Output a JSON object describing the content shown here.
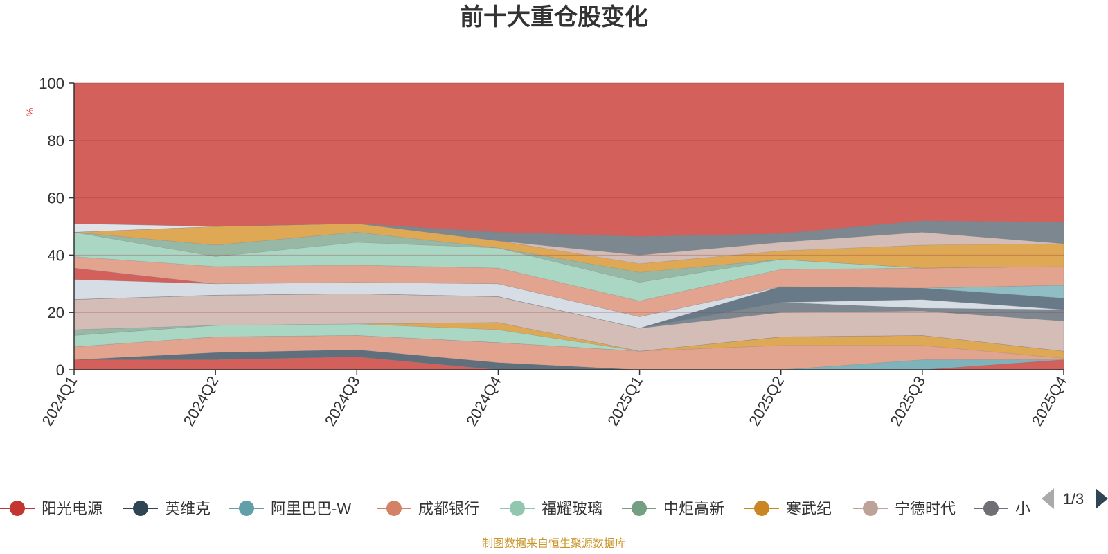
{
  "chart_data": {
    "type": "area",
    "title": "前十大重仓股变化",
    "ylabel": "%",
    "ylim": [
      0,
      100
    ],
    "yticks": [
      0,
      20,
      40,
      60,
      80,
      100
    ],
    "categories": [
      "2024Q1",
      "2024Q2",
      "2024Q3",
      "2024Q4",
      "2025Q1",
      "2025Q2",
      "2025Q3",
      "2025Q4"
    ],
    "grid": true,
    "legend_position": "bottom",
    "legend_page": "1/3",
    "bands": [
      {
        "color": "#d4605c",
        "lower": [
          3.5,
          3.5,
          4.5,
          0,
          0,
          0,
          0,
          3.5
        ],
        "upper": [
          3.5,
          3.5,
          4.5,
          0,
          0,
          0,
          0,
          3.5
        ]
      },
      {
        "color": "#d4605c",
        "lower": [
          0,
          0,
          0,
          0,
          0,
          0,
          0,
          0
        ],
        "upper": [
          3.5,
          3.5,
          4.5,
          0,
          0,
          0,
          0,
          3.5
        ]
      },
      {
        "color": "#5f6f7c",
        "lower": [
          3.5,
          3.5,
          4.5,
          0,
          0,
          0,
          0,
          3.5
        ],
        "upper": [
          3.5,
          6,
          7,
          2.5,
          0,
          0,
          0,
          3.5
        ]
      },
      {
        "color": "#7fb3bb",
        "lower": [
          0,
          0,
          0,
          0,
          0,
          0,
          0,
          3.5
        ],
        "upper": [
          0,
          0,
          0,
          0,
          0,
          0,
          3.5,
          3.5
        ]
      },
      {
        "color": "#e2a48e",
        "lower": [
          3.5,
          6,
          7,
          2.5,
          0,
          0,
          3.5,
          3.5
        ],
        "upper": [
          8,
          11.5,
          12,
          9.5,
          6.5,
          8.5,
          8.5,
          4
        ]
      },
      {
        "color": "#dfa855",
        "lower": [
          8,
          11.5,
          12,
          9.5,
          6.5,
          8.5,
          8.5,
          4
        ],
        "upper": [
          8,
          11.5,
          12,
          9.5,
          6.5,
          11.5,
          12,
          6.5
        ]
      },
      {
        "color": "#aad6c4",
        "lower": [
          8,
          11.5,
          12,
          9.5,
          6.5,
          11.5,
          12,
          6.5
        ],
        "upper": [
          12,
          15.5,
          16,
          14,
          6.5,
          11.5,
          12,
          6.5
        ]
      },
      {
        "color": "#dfa855",
        "lower": [
          12,
          15.5,
          16,
          14,
          6.5,
          11.5,
          12,
          6.5
        ],
        "upper": [
          12,
          15.5,
          16,
          16.5,
          6.5,
          11.5,
          12,
          6.5
        ]
      },
      {
        "color": "#98b8a6",
        "lower": [
          12,
          15.5,
          16,
          16.5,
          6.5,
          11.5,
          12,
          6.5
        ],
        "upper": [
          14,
          15.5,
          16,
          16.5,
          6.5,
          11.5,
          12,
          6.5
        ]
      },
      {
        "color": "#d3bdb6",
        "lower": [
          14,
          15.5,
          16,
          16.5,
          6.5,
          11.5,
          12,
          6.5
        ],
        "upper": [
          24.5,
          26,
          26.5,
          25.5,
          14.5,
          20,
          20.5,
          17
        ]
      },
      {
        "color": "#7c8790",
        "lower": [
          24.5,
          26,
          26.5,
          25.5,
          14.5,
          20,
          20.5,
          17
        ],
        "upper": [
          24.5,
          26,
          26.5,
          25.5,
          14.5,
          23.5,
          21.5,
          21
        ]
      },
      {
        "color": "#d7dde4",
        "lower": [
          24.5,
          26,
          26.5,
          25.5,
          14.5,
          23.5,
          21.5,
          21
        ],
        "upper": [
          31.5,
          30,
          30.5,
          30,
          18.5,
          29,
          24.5,
          21
        ]
      },
      {
        "color": "#687a87",
        "lower": [
          24.5,
          26,
          26.5,
          25.5,
          14.5,
          23.5,
          24.5,
          21
        ],
        "upper": [
          24.5,
          26,
          26.5,
          25.5,
          14.5,
          29,
          28.5,
          25
        ]
      },
      {
        "color": "#8fbec5",
        "lower": [
          24.5,
          26,
          26.5,
          25.5,
          14.5,
          29,
          28.5,
          25
        ],
        "upper": [
          24.5,
          26,
          26.5,
          25.5,
          14.5,
          29,
          28.5,
          29.5
        ]
      },
      {
        "color": "#d4605c",
        "lower": [
          31.5,
          30,
          30.5,
          30,
          18.5,
          29,
          28.5,
          29.5
        ],
        "upper": [
          35.5,
          30,
          30.5,
          30,
          18.5,
          29,
          28.5,
          29.5
        ]
      },
      {
        "color": "#e2a48e",
        "lower": [
          35.5,
          30,
          30.5,
          30,
          18.5,
          29,
          28.5,
          29.5
        ],
        "upper": [
          39.5,
          36,
          36.5,
          35.5,
          24,
          35,
          35.5,
          36
        ]
      },
      {
        "color": "#aad6c4",
        "lower": [
          39.5,
          36,
          36.5,
          35.5,
          24,
          35,
          35.5,
          36
        ],
        "upper": [
          48,
          39.5,
          44.5,
          42.5,
          30.5,
          38.5,
          35.5,
          36
        ]
      },
      {
        "color": "#98b8a6",
        "lower": [
          48,
          39.5,
          44.5,
          42.5,
          30.5,
          38.5,
          35.5,
          36
        ],
        "upper": [
          48,
          43.5,
          48,
          42.5,
          34,
          38.5,
          35.5,
          36
        ]
      },
      {
        "color": "#dfa855",
        "lower": [
          48,
          43.5,
          48,
          42.5,
          34,
          38.5,
          35.5,
          36
        ],
        "upper": [
          48,
          50,
          51,
          45,
          37,
          41.5,
          43.5,
          44
        ]
      },
      {
        "color": "#d3bdb6",
        "lower": [
          48,
          50,
          51,
          45,
          37,
          41.5,
          43.5,
          44
        ],
        "upper": [
          48,
          50,
          51,
          45,
          40,
          44.5,
          48,
          44
        ]
      },
      {
        "color": "#7c8790",
        "lower": [
          48,
          50,
          51,
          45,
          40,
          44.5,
          48,
          44
        ],
        "upper": [
          48,
          50,
          51,
          48,
          46.5,
          47.5,
          52,
          51.5
        ]
      },
      {
        "color": "#e0e4ea",
        "lower": [
          48,
          50,
          51,
          48,
          46.5,
          47.5,
          52,
          51.5
        ],
        "upper": [
          51,
          50,
          51,
          48,
          46.5,
          47.5,
          52,
          51.5
        ]
      },
      {
        "color": "#d4605c",
        "lower": [
          51,
          50,
          51,
          48,
          46.5,
          47.5,
          52,
          51.5
        ],
        "upper": [
          100,
          100,
          100,
          100,
          100,
          100,
          100,
          100
        ]
      }
    ],
    "series": [
      {
        "name": "阳光电源",
        "color": "#c23531"
      },
      {
        "name": "英维克",
        "color": "#2f4554"
      },
      {
        "name": "阿里巴巴-W",
        "color": "#61a0a8"
      },
      {
        "name": "成都银行",
        "color": "#d48265"
      },
      {
        "name": "福耀玻璃",
        "color": "#91c7ae"
      },
      {
        "name": "中炬高新",
        "color": "#749f83"
      },
      {
        "name": "寒武纪",
        "color": "#ca8622"
      },
      {
        "name": "宁德时代",
        "color": "#bda29a"
      },
      {
        "name": "小",
        "color": "#6e7074"
      }
    ],
    "source": "制图数据来自恒生聚源数据库"
  }
}
